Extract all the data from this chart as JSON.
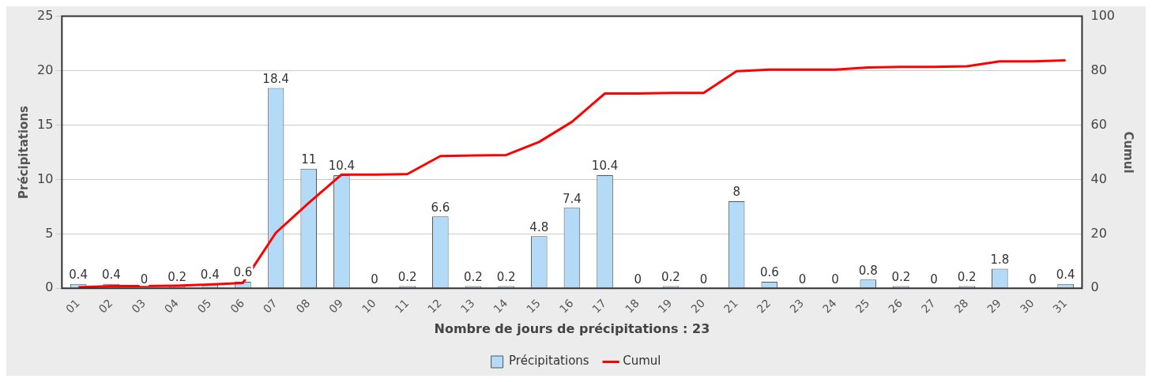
{
  "chart_data": {
    "type": "bar",
    "xlabel": "Nombre de jours de précipitations : 23",
    "ylabel": "Précipitations",
    "y2label": "Cumul",
    "categories": [
      "01",
      "02",
      "03",
      "04",
      "05",
      "06",
      "07",
      "08",
      "09",
      "10",
      "11",
      "12",
      "13",
      "14",
      "15",
      "16",
      "17",
      "18",
      "19",
      "20",
      "21",
      "22",
      "23",
      "24",
      "25",
      "26",
      "27",
      "28",
      "29",
      "30",
      "31"
    ],
    "series": [
      {
        "name": "Précipitations",
        "color": "#b3dbf7",
        "values": [
          0.4,
          0.4,
          0,
          0.2,
          0.4,
          0.6,
          18.4,
          11,
          10.4,
          0,
          0.2,
          6.6,
          0.2,
          0.2,
          4.8,
          7.4,
          10.4,
          0,
          0.2,
          0,
          8,
          0.6,
          0,
          0,
          0.8,
          0.2,
          0,
          0.2,
          1.8,
          0,
          0.4
        ],
        "value_labels": [
          "0.4",
          "0.4",
          "0",
          "0.2",
          "0.4",
          "0.6",
          "18.4",
          "11",
          "10.4",
          "0",
          "0.2",
          "6.6",
          "0.2",
          "0.2",
          "4.8",
          "7.4",
          "10.4",
          "0",
          "0.2",
          "0",
          "8",
          "0.6",
          "0",
          "0",
          "0.8",
          "0.2",
          "0",
          "0.2",
          "1.8",
          "0",
          "0.4"
        ]
      },
      {
        "name": "Cumul",
        "type": "line",
        "axis": "y2",
        "color": "#ff0000",
        "marker": "none",
        "values": [
          0.4,
          0.8,
          0.8,
          1.0,
          1.4,
          2.0,
          20.4,
          31.4,
          41.8,
          41.8,
          42.0,
          48.6,
          48.8,
          49.0,
          53.8,
          61.2,
          71.6,
          71.6,
          71.8,
          71.8,
          79.8,
          80.4,
          80.4,
          80.4,
          81.2,
          81.4,
          81.4,
          81.6,
          83.4,
          83.4,
          83.8
        ]
      }
    ],
    "ylim": [
      0,
      25
    ],
    "yticks": [
      0,
      5,
      10,
      15,
      20,
      25
    ],
    "y2lim": [
      0,
      100
    ],
    "y2ticks": [
      0,
      20,
      40,
      60,
      80,
      100
    ],
    "grid": "y",
    "legend": "bottom"
  }
}
